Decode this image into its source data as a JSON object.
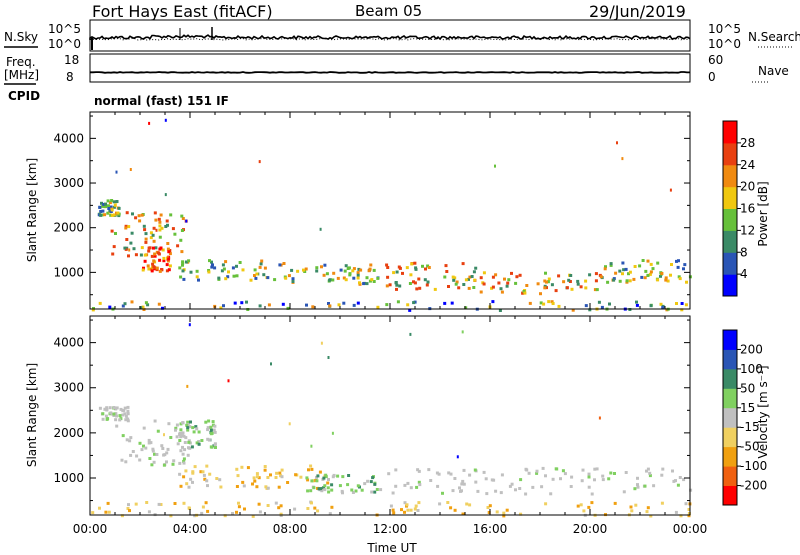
{
  "header": {
    "radar": "Fort Hays East (fitACF)",
    "beam": "Beam 05",
    "date": "29/Jun/2019"
  },
  "noise_panel": {
    "left_label": "N.Sky",
    "right_label": "N.Search",
    "left_ticks": [
      "10^5",
      "10^0"
    ],
    "right_ticks": [
      "10^5",
      "10^0"
    ]
  },
  "freq_panel": {
    "left_label_line1": "Freq.",
    "left_label_line2": "[MHz]",
    "right_label": "Nave",
    "left_ticks": [
      "18",
      "8"
    ],
    "right_ticks": [
      "60",
      "0"
    ]
  },
  "cpid": {
    "label": "CPID",
    "text": "normal (fast) 151 IF"
  },
  "colors": {
    "frame": "#000000",
    "ground_scatter": "#c0c0c0"
  },
  "chart_data": [
    {
      "type": "heatmap",
      "name": "power",
      "ylabel": "Slant Range [km]",
      "xlabel": "",
      "yticks": [
        1000,
        2000,
        3000,
        4000
      ],
      "ylim": [
        180,
        4590
      ],
      "xlim_hours": [
        0,
        24
      ],
      "colorbar": {
        "label": "Power [dB]",
        "ticks": [
          "4",
          "8",
          "12",
          "16",
          "20",
          "24",
          "28"
        ],
        "range": [
          0,
          30
        ],
        "colors": [
          "#0000ff",
          "#2a55b5",
          "#3a8a66",
          "#66c03a",
          "#f0c810",
          "#f08a10",
          "#e84010",
          "#ff0000"
        ]
      },
      "regions": [
        {
          "t": [
            0.3,
            1.2
          ],
          "r": [
            2300,
            2650
          ],
          "level": "mid"
        },
        {
          "t": [
            0.8,
            3.8
          ],
          "r": [
            1400,
            2400
          ],
          "level": "high"
        },
        {
          "t": [
            2.0,
            3.2
          ],
          "r": [
            1050,
            1600
          ],
          "level": "peak"
        },
        {
          "t": [
            3.5,
            8.0
          ],
          "r": [
            850,
            1300
          ],
          "level": "mid"
        },
        {
          "t": [
            8.0,
            11.5
          ],
          "r": [
            750,
            1200
          ],
          "level": "mid"
        },
        {
          "t": [
            11.8,
            15.5
          ],
          "r": [
            650,
            1250
          ],
          "level": "high"
        },
        {
          "t": [
            15.5,
            20.5
          ],
          "r": [
            550,
            1050
          ],
          "level": "high"
        },
        {
          "t": [
            20.5,
            24.0
          ],
          "r": [
            800,
            1300
          ],
          "level": "mid"
        },
        {
          "t": [
            0.0,
            24.0
          ],
          "r": [
            180,
            380
          ],
          "level": "low"
        }
      ]
    },
    {
      "type": "heatmap",
      "name": "velocity",
      "ylabel": "Slant Range [km]",
      "xlabel": "Time UT",
      "xticks": [
        "00:00",
        "04:00",
        "08:00",
        "12:00",
        "16:00",
        "20:00",
        "00:00"
      ],
      "yticks": [
        1000,
        2000,
        3000,
        4000
      ],
      "ylim": [
        180,
        4590
      ],
      "xlim_hours": [
        0,
        24
      ],
      "colorbar": {
        "label": "Velocity [m s⁻¹]",
        "ticks": [
          "-200",
          "-100",
          "-50",
          "-15",
          "15",
          "50",
          "100",
          "200"
        ],
        "colors": [
          "#ff0000",
          "#f06010",
          "#f0a010",
          "#f0d060",
          "#c0c0c0",
          "#80d060",
          "#3a8a66",
          "#2a55b5",
          "#0000ff"
        ]
      },
      "regions": [
        {
          "t": [
            0.3,
            1.5
          ],
          "r": [
            2300,
            2600
          ],
          "level": "gs"
        },
        {
          "t": [
            1.0,
            4.0
          ],
          "r": [
            1300,
            2300
          ],
          "level": "gs"
        },
        {
          "t": [
            3.5,
            5.0
          ],
          "r": [
            1700,
            2300
          ],
          "level": "pos"
        },
        {
          "t": [
            3.5,
            9.5
          ],
          "r": [
            800,
            1300
          ],
          "level": "neg"
        },
        {
          "t": [
            8.5,
            11.5
          ],
          "r": [
            700,
            1100
          ],
          "level": "pos"
        },
        {
          "t": [
            11.5,
            24.0
          ],
          "r": [
            650,
            1250
          ],
          "level": "gs"
        },
        {
          "t": [
            0.0,
            24.0
          ],
          "r": [
            180,
            500
          ],
          "level": "neg"
        }
      ]
    }
  ]
}
